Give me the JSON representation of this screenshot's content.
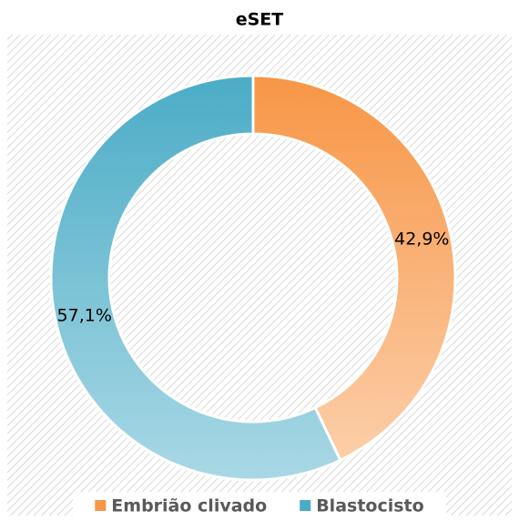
{
  "chart_data": {
    "type": "donut",
    "title": "eSET",
    "categories": [
      "Embrião clivado",
      "Blastocisto"
    ],
    "values": [
      42.9,
      57.1
    ],
    "value_labels": [
      "42,9%",
      "57,1%"
    ],
    "colors": [
      "#f79646",
      "#4bacc6"
    ],
    "legend": "bottom"
  }
}
